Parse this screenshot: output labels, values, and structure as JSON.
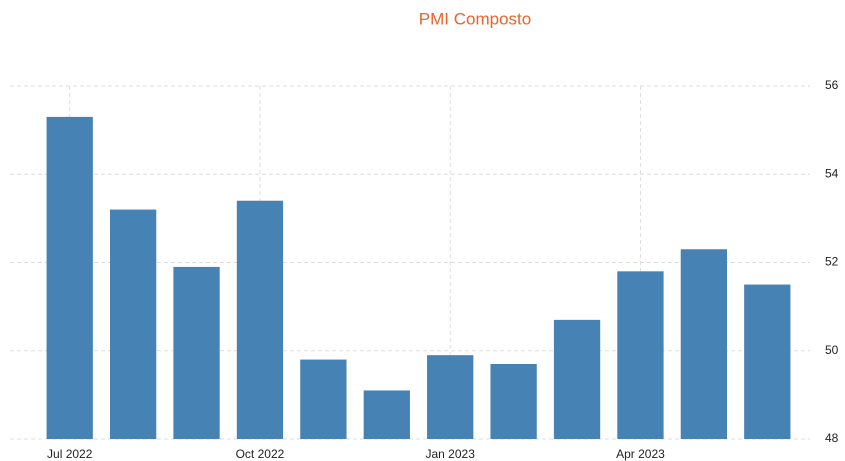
{
  "chart_data": {
    "type": "bar",
    "title": "PMI Composto",
    "categories": [
      "Jul 2022",
      null,
      null,
      "Oct 2022",
      null,
      null,
      "Jan 2023",
      null,
      null,
      "Apr 2023",
      null,
      null
    ],
    "values": [
      55.3,
      53.2,
      51.9,
      53.4,
      49.8,
      49.1,
      49.9,
      49.7,
      50.7,
      51.8,
      52.3,
      51.5
    ],
    "color": "#4682b4",
    "ylim": [
      48,
      56
    ],
    "yticks": [
      48,
      50,
      52,
      54,
      56
    ],
    "grid": true
  }
}
